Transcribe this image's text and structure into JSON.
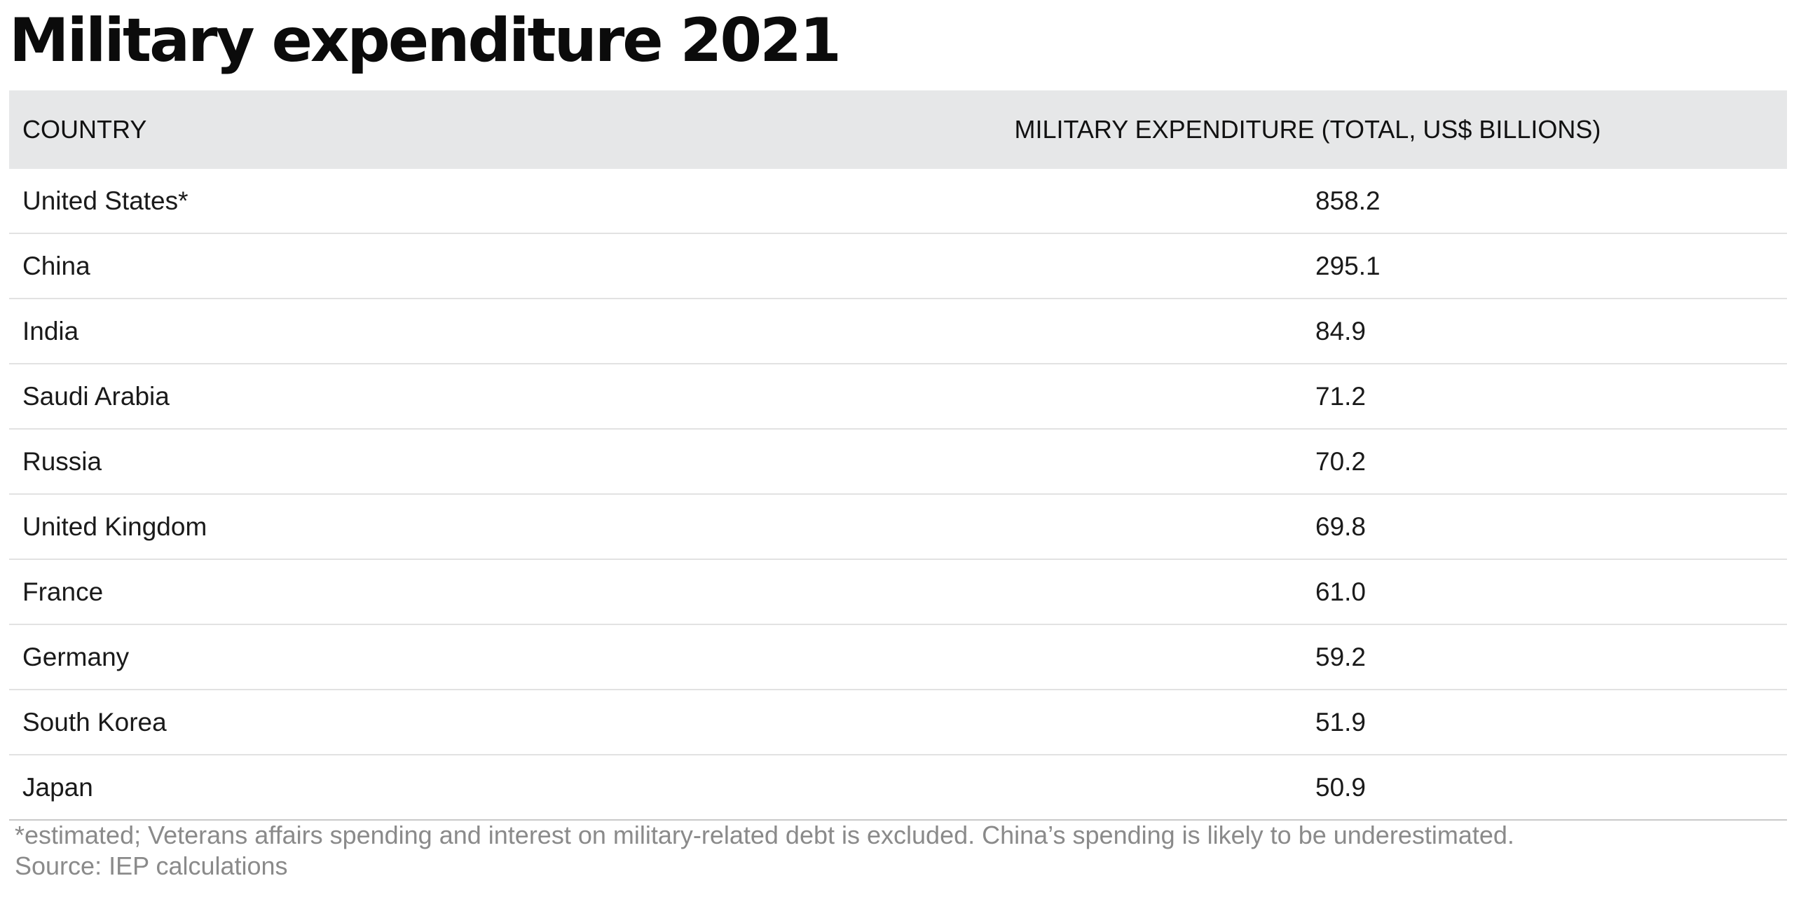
{
  "title": "Military expenditure 2021",
  "table": {
    "headers": {
      "country": "COUNTRY",
      "value": "MILITARY EXPENDITURE (TOTAL, US$ BILLIONS)"
    },
    "rows": [
      {
        "country": "United States*",
        "value": "858.2"
      },
      {
        "country": "China",
        "value": "295.1"
      },
      {
        "country": "India",
        "value": "84.9"
      },
      {
        "country": "Saudi Arabia",
        "value": "71.2"
      },
      {
        "country": "Russia",
        "value": "70.2"
      },
      {
        "country": "United Kingdom",
        "value": "69.8"
      },
      {
        "country": "France",
        "value": "61.0"
      },
      {
        "country": "Germany",
        "value": "59.2"
      },
      {
        "country": "South Korea",
        "value": "51.9"
      },
      {
        "country": "Japan",
        "value": "50.9"
      }
    ]
  },
  "footnote": {
    "note": "*estimated; Veterans affairs spending and interest on military-related debt is excluded. China’s spending is likely to be underestimated.",
    "source": "Source: IEP calculations"
  },
  "colors": {
    "header_background": "#e6e7e8",
    "row_divider": "#e2e2e2",
    "footnote_text": "#8a8a8a"
  },
  "chart_data": {
    "type": "table",
    "title": "Military expenditure 2021",
    "columns": [
      "COUNTRY",
      "MILITARY EXPENDITURE (TOTAL, US$ BILLIONS)"
    ],
    "categories": [
      "United States*",
      "China",
      "India",
      "Saudi Arabia",
      "Russia",
      "United Kingdom",
      "France",
      "Germany",
      "South Korea",
      "Japan"
    ],
    "values": [
      858.2,
      295.1,
      84.9,
      71.2,
      70.2,
      69.8,
      61.0,
      59.2,
      51.9,
      50.9
    ]
  }
}
